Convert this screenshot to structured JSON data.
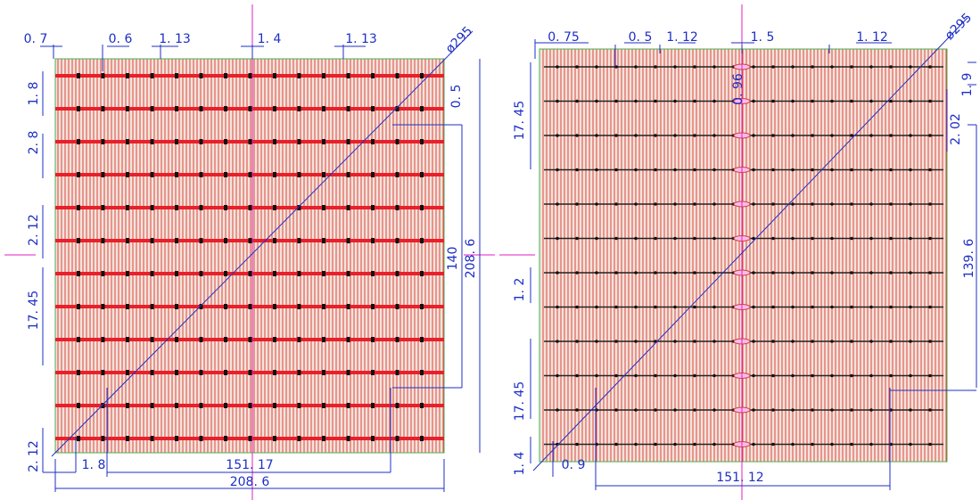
{
  "panels": [
    {
      "labels": [
        "0. 7",
        "0. 6",
        "1. 13",
        "1. 4",
        "1. 13",
        "ø295",
        "1. 8",
        "0. 5",
        "2. 8",
        "2. 12",
        "140",
        "208. 6",
        "17. 45",
        "2. 12",
        "1. 8",
        "151. 17",
        "208. 6"
      ]
    },
    {
      "labels": [
        "0. 75",
        "0. 5",
        "1. 12",
        "1. 5",
        "1. 12",
        "ø295",
        "1. 9",
        "17. 45",
        "2. 02",
        "0. 96",
        "139. 6",
        "1. 2",
        "17. 45",
        "1. 4",
        "0. 9",
        "151. 12"
      ]
    }
  ]
}
